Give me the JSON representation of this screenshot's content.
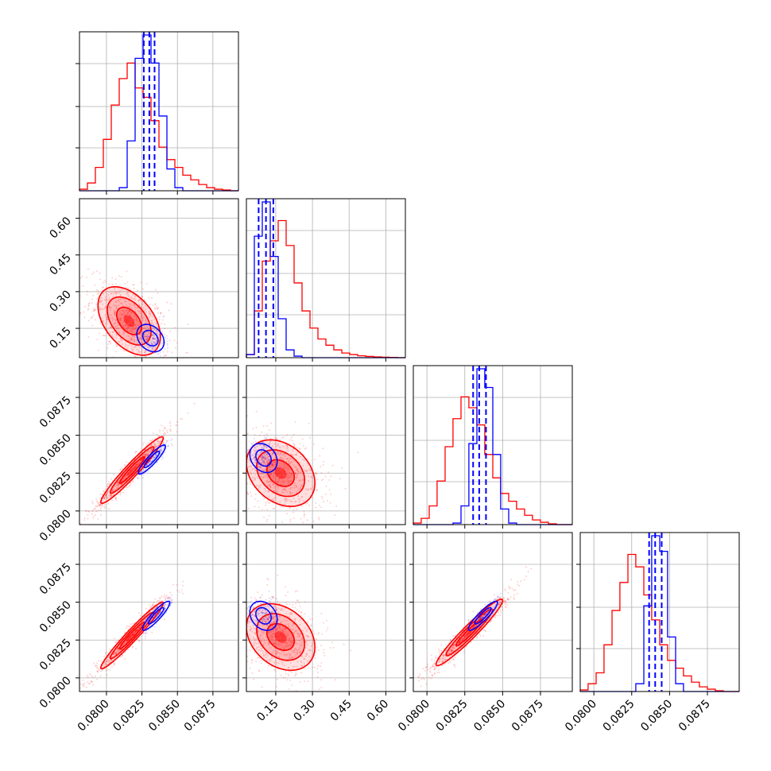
{
  "chart_data": {
    "type": "corner",
    "colors": {
      "red_series": "#ff0000",
      "blue_series": "#0000ff",
      "grid": "#b0b0b0"
    },
    "grid": true,
    "params": [
      {
        "range": [
          0.0781,
          0.0893
        ],
        "ticks": [
          0.08,
          0.0825,
          0.085,
          0.0875
        ],
        "tick_labels": [
          "0.0800",
          "0.0825",
          "0.0850",
          "0.0875"
        ]
      },
      {
        "range": [
          0.03,
          0.68
        ],
        "ticks": [
          0.15,
          0.3,
          0.45,
          0.6
        ],
        "tick_labels": [
          "0.15",
          "0.30",
          "0.45",
          "0.60"
        ]
      },
      {
        "range": [
          0.0791,
          0.0896
        ],
        "ticks": [
          0.08,
          0.0825,
          0.085,
          0.0875
        ],
        "tick_labels": [
          "0.0800",
          "0.0825",
          "0.0850",
          "0.0875"
        ]
      },
      {
        "range": [
          0.0791,
          0.0896
        ],
        "ticks": [
          0.08,
          0.0825,
          0.085,
          0.0875
        ],
        "tick_labels": [
          "0.0800",
          "0.0825",
          "0.0850",
          "0.0875"
        ]
      }
    ],
    "diagonal": [
      {
        "bin_edges": [
          0.0781,
          0.07866,
          0.07922,
          0.07978,
          0.08034,
          0.0809,
          0.08146,
          0.08202,
          0.08258,
          0.08314,
          0.0837,
          0.08426,
          0.08482,
          0.08538,
          0.08594,
          0.0865,
          0.08706,
          0.08762,
          0.08818,
          0.08874,
          0.0893
        ],
        "red_counts": [
          0.01,
          0.05,
          0.15,
          0.33,
          0.55,
          0.72,
          0.82,
          0.66,
          0.6,
          0.45,
          0.28,
          0.2,
          0.15,
          0.1,
          0.07,
          0.04,
          0.02,
          0.01,
          0.005,
          0.0
        ],
        "blue_counts": [
          0.0,
          0.0,
          0.0,
          0.0,
          0.0,
          0.02,
          0.32,
          0.85,
          1.0,
          0.82,
          0.48,
          0.14,
          0.02,
          0.0,
          0.0,
          0.0,
          0.0,
          0.0,
          0.0,
          0.0
        ],
        "blue_quantiles": [
          0.08263,
          0.08302,
          0.08339
        ]
      },
      {
        "bin_edges": [
          0.03,
          0.0625,
          0.095,
          0.1275,
          0.16,
          0.1925,
          0.225,
          0.2575,
          0.29,
          0.3225,
          0.355,
          0.3875,
          0.42,
          0.4525,
          0.485,
          0.5175,
          0.55,
          0.5825,
          0.615,
          0.6475,
          0.68
        ],
        "red_counts": [
          0.02,
          0.3,
          0.62,
          0.75,
          0.88,
          0.72,
          0.48,
          0.3,
          0.19,
          0.12,
          0.08,
          0.05,
          0.03,
          0.02,
          0.012,
          0.008,
          0.005,
          0.003,
          0.002,
          0.0
        ],
        "blue_counts": [
          0.02,
          0.78,
          1.0,
          0.65,
          0.25,
          0.05,
          0.01,
          0.0,
          0.0,
          0.0,
          0.0,
          0.0,
          0.0,
          0.0,
          0.0,
          0.0,
          0.0,
          0.0,
          0.0,
          0.0
        ],
        "blue_quantiles": [
          0.08,
          0.11,
          0.14
        ]
      },
      {
        "bin_edges": [
          0.0791,
          0.07962,
          0.08015,
          0.08067,
          0.0812,
          0.08172,
          0.08225,
          0.08277,
          0.0833,
          0.08382,
          0.08435,
          0.08487,
          0.0854,
          0.08592,
          0.08645,
          0.08697,
          0.0875,
          0.08802,
          0.08855,
          0.08907,
          0.0896
        ],
        "red_counts": [
          0.01,
          0.04,
          0.12,
          0.28,
          0.5,
          0.68,
          0.82,
          0.75,
          0.64,
          0.45,
          0.3,
          0.2,
          0.15,
          0.1,
          0.06,
          0.03,
          0.015,
          0.005,
          0.0,
          0.0
        ],
        "blue_counts": [
          0.0,
          0.0,
          0.0,
          0.0,
          0.0,
          0.01,
          0.12,
          0.52,
          1.0,
          0.88,
          0.45,
          0.1,
          0.01,
          0.0,
          0.0,
          0.0,
          0.0,
          0.0,
          0.0,
          0.0
        ],
        "blue_quantiles": [
          0.08305,
          0.08345,
          0.0839
        ]
      },
      {
        "bin_edges": [
          0.0791,
          0.07962,
          0.08015,
          0.08067,
          0.0812,
          0.08172,
          0.08225,
          0.08277,
          0.0833,
          0.08382,
          0.08435,
          0.08487,
          0.0854,
          0.08592,
          0.08645,
          0.08697,
          0.0875,
          0.08802,
          0.08855,
          0.08907,
          0.0896
        ],
        "red_counts": [
          0.01,
          0.05,
          0.12,
          0.3,
          0.52,
          0.7,
          0.88,
          0.8,
          0.62,
          0.46,
          0.3,
          0.2,
          0.15,
          0.1,
          0.06,
          0.03,
          0.015,
          0.005,
          0.0,
          0.0
        ],
        "blue_counts": [
          0.0,
          0.0,
          0.0,
          0.0,
          0.0,
          0.0,
          0.0,
          0.05,
          0.55,
          1.0,
          0.9,
          0.35,
          0.05,
          0.0,
          0.0,
          0.0,
          0.0,
          0.0,
          0.0,
          0.0
        ],
        "blue_quantiles": [
          0.08365,
          0.08405,
          0.08448
        ]
      }
    ],
    "pairs": [
      {
        "row": 1,
        "col": 0,
        "red": {
          "center": [
            0.0816,
            0.18
          ],
          "sigma": [
            0.0011,
            0.07
          ],
          "rho": -0.45
        },
        "blue": {
          "center": [
            0.0831,
            0.11
          ],
          "sigma": [
            0.0006,
            0.035
          ],
          "rho": -0.3
        }
      },
      {
        "row": 2,
        "col": 0,
        "red": {
          "center": [
            0.0818,
            0.0827
          ],
          "sigma": [
            0.0011,
            0.0011
          ],
          "rho": 0.96
        },
        "blue": {
          "center": [
            0.0832,
            0.0834
          ],
          "sigma": [
            0.0006,
            0.0006
          ],
          "rho": 0.9
        }
      },
      {
        "row": 2,
        "col": 1,
        "red": {
          "center": [
            0.17,
            0.0825
          ],
          "sigma": [
            0.07,
            0.0011
          ],
          "rho": -0.3
        },
        "blue": {
          "center": [
            0.1,
            0.0835
          ],
          "sigma": [
            0.035,
            0.0006
          ],
          "rho": -0.25
        }
      },
      {
        "row": 3,
        "col": 0,
        "red": {
          "center": [
            0.0818,
            0.0828
          ],
          "sigma": [
            0.0011,
            0.0011
          ],
          "rho": 0.97
        },
        "blue": {
          "center": [
            0.0835,
            0.0841
          ],
          "sigma": [
            0.0006,
            0.0006
          ],
          "rho": 0.9
        }
      },
      {
        "row": 3,
        "col": 1,
        "red": {
          "center": [
            0.17,
            0.0827
          ],
          "sigma": [
            0.07,
            0.0011
          ],
          "rho": -0.3
        },
        "blue": {
          "center": [
            0.1,
            0.0841
          ],
          "sigma": [
            0.035,
            0.0006
          ],
          "rho": -0.25
        }
      },
      {
        "row": 3,
        "col": 2,
        "red": {
          "center": [
            0.0828,
            0.083
          ],
          "sigma": [
            0.0011,
            0.0011
          ],
          "rho": 0.96
        },
        "blue": {
          "center": [
            0.0837,
            0.0841
          ],
          "sigma": [
            0.0006,
            0.0006
          ],
          "rho": 0.9
        }
      }
    ]
  }
}
